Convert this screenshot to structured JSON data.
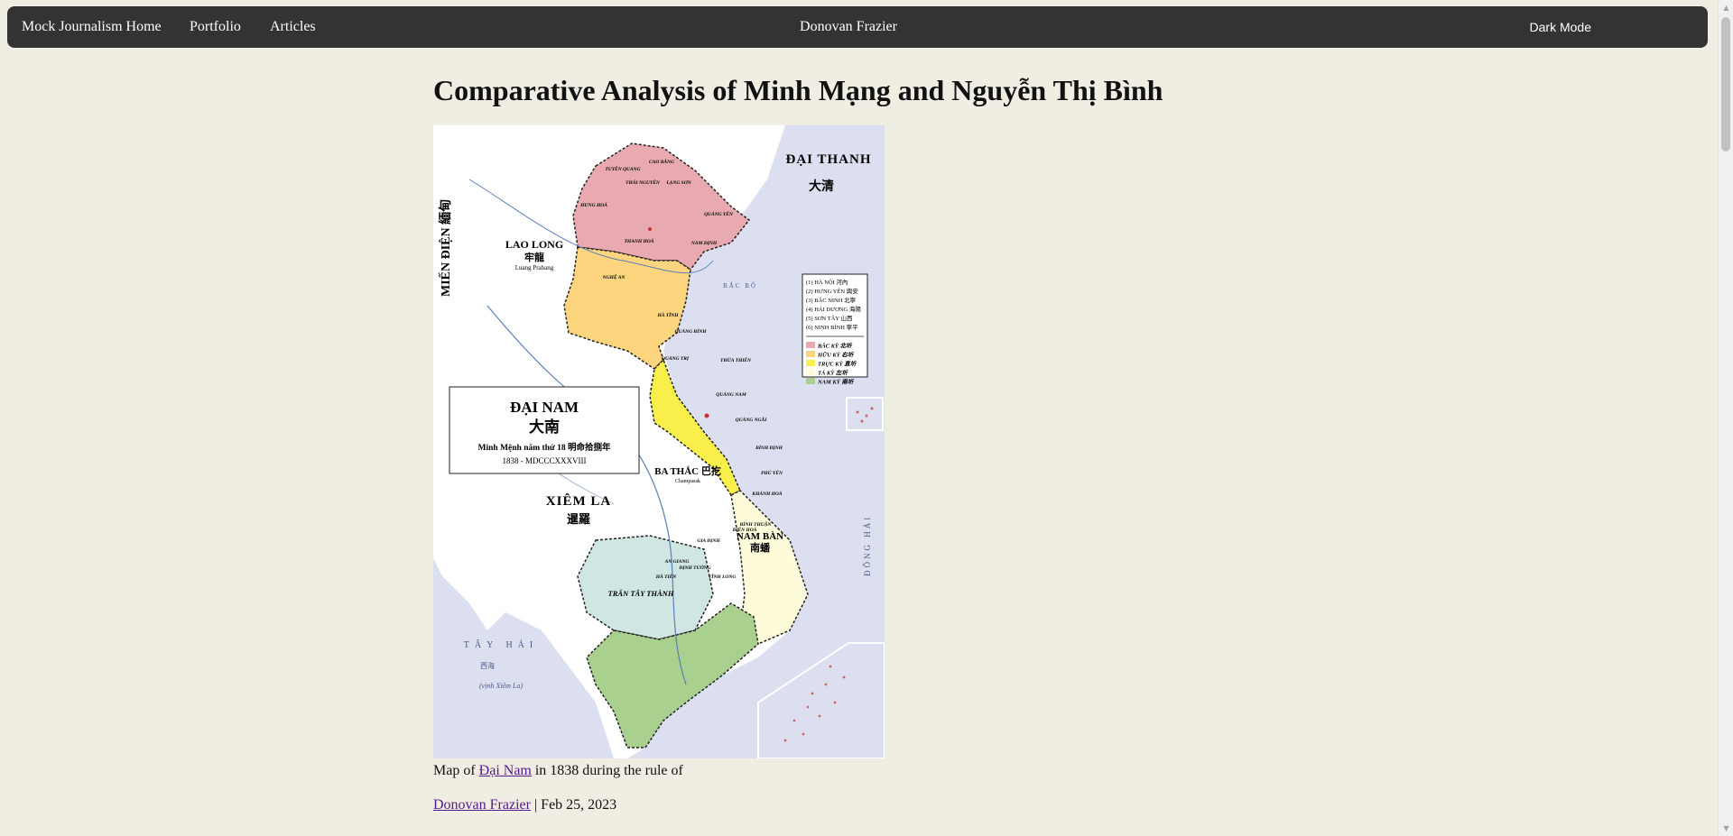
{
  "nav": {
    "home": "Mock Journalism Home",
    "portfolio": "Portfolio",
    "articles": "Articles",
    "site_title": "Donovan Frazier",
    "dark_mode": "Dark Mode"
  },
  "article": {
    "title": "Comparative Analysis of Minh Mạng and Nguyễn Thị Bình",
    "caption_pre": "Map of ",
    "caption_link": "Đại Nam",
    "caption_post": " in 1838 during the rule of",
    "author": "Donovan Frazier",
    "date_sep": " | ",
    "date": "Feb 25, 2023"
  },
  "map": {
    "title_1": "ĐẠI NAM",
    "title_2": "大南",
    "subtitle": "Minh Mệnh năm thứ 18 明命拾捌年",
    "year": "1838 - MDCCCXXXVIII",
    "dai_thanh": "ĐẠI THANH",
    "dai_thanh_han": "大清",
    "mien_dien": "MIẾN ĐIỆN 緬甸",
    "lao_long": "LAO LONG",
    "lao_long_han": "牢龍",
    "lao_long_sub": "Luang Prabang",
    "xiem_la": "XIÊM LA",
    "xiem_la_han": "暹羅",
    "ba_thac": "BA THẮC 巴扢",
    "ba_thac_sub": "Champasak",
    "nam_ban": "NAM BÀN",
    "nam_ban_han": "南蟠",
    "tran_tay_thanh": "TRẤN TÂY THÀNH",
    "tay_hai": "TÂY HẢI",
    "tay_hai_han": "西海",
    "vinh_xiem_la": "(vịnh Xiêm La)",
    "dong_hai": "ĐÔNG HẢI",
    "bac_bo": "BẮC BỘ",
    "provinces": [
      "TUYÊN QUANG",
      "CAO BẰNG",
      "THÁI NGUYÊN",
      "LẠNG SƠN",
      "HƯNG HOÁ",
      "QUẢNG YÊN",
      "THANH HOÁ",
      "NAM ĐỊNH",
      "NGHỆ AN",
      "HÀ TĨNH",
      "QUẢNG BÌNH",
      "QUẢNG TRỊ",
      "THỪA THIÊN",
      "QUẢNG NAM",
      "QUẢNG NGÃI",
      "BÌNH ĐỊNH",
      "PHÚ YÊN",
      "KHÁNH HOÀ",
      "BÌNH THUẬN",
      "BIÊN HOÀ",
      "GIA ĐỊNH",
      "ĐỊNH TƯỜNG",
      "AN GIANG",
      "VĨNH LONG",
      "HÀ TIÊN"
    ],
    "legend_items": [
      "(1) HÀ NỘI 河內",
      "(2) HƯNG YÊN 興安",
      "(3) BẮC NINH 北寧",
      "(4) HẢI DƯƠNG 海陽",
      "(5) SƠN TÂY 山西",
      "(6) NINH BÌNH 寧平"
    ],
    "legend_regions": [
      {
        "label": "BẮC KỲ 北圻",
        "color": "#e8a9b0"
      },
      {
        "label": "HỮU KỲ 右圻",
        "color": "#fcd57e"
      },
      {
        "label": "TRỰC KỲ 直圻",
        "color": "#f8ef4a"
      },
      {
        "label": "TẢ KỲ 左圻",
        "color": "#fdfbd9"
      },
      {
        "label": "NAM KỲ 南圻",
        "color": "#a9d08e"
      }
    ],
    "colors": {
      "sea": "#dcdff0",
      "land": "#ffffff",
      "bac_ky": "#e8a9b0",
      "huu_ky": "#fcd57e",
      "truc_ky": "#f8ef4a",
      "ta_ky": "#fdfbd9",
      "nam_ky": "#a9d08e",
      "tran_tay": "#cfe6e3",
      "river": "#5a7fb8"
    }
  },
  "colors": {
    "page_bg": "#f0ede2",
    "navbar_bg": "#333333",
    "link": "#551a8b"
  },
  "scrollbar": {
    "up_icon": "triangle-up",
    "down_icon": "triangle-down"
  }
}
